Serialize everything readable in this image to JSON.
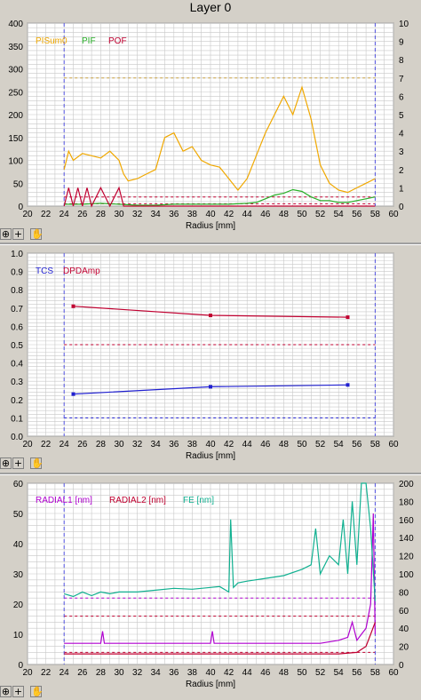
{
  "title": "Layer 0",
  "toolbar": {
    "zoom_icon": "zoom-icon",
    "cross_icon": "crosshair-icon",
    "hand_icon": "hand-pan-icon"
  },
  "colors": {
    "orange": "#f0a800",
    "green": "#28b028",
    "red": "#c00030",
    "blue": "#2020d0",
    "purple": "#b000d0",
    "teal": "#10b090",
    "plot_bg": "#ffffff",
    "grid": "#c8c8c8",
    "vline": "#5050e0"
  },
  "chart_data": [
    {
      "type": "line",
      "xlabel": "Radius [mm]",
      "xlim": [
        20,
        60
      ],
      "ylim": [
        0,
        400
      ],
      "y2lim": [
        0,
        10
      ],
      "xticks": [
        20,
        22,
        24,
        26,
        28,
        30,
        32,
        34,
        36,
        38,
        40,
        42,
        44,
        46,
        48,
        50,
        52,
        54,
        56,
        58,
        60
      ],
      "yticks": [
        0,
        50,
        100,
        150,
        200,
        250,
        300,
        350,
        400
      ],
      "y2ticks": [
        0,
        1,
        2,
        3,
        4,
        5,
        6,
        7,
        8,
        9,
        10
      ],
      "vlines": [
        24,
        58
      ],
      "series": [
        {
          "name": "PISum0",
          "color": "#f0a800",
          "axis": "y",
          "x": [
            24,
            24.5,
            25,
            26,
            27,
            28,
            29,
            30,
            30.5,
            31,
            32,
            33,
            34,
            35,
            36,
            37,
            38,
            39,
            40,
            41,
            42,
            43,
            44,
            45,
            46,
            47,
            48,
            49,
            50,
            51,
            52,
            53,
            54,
            55,
            56,
            57,
            58
          ],
          "values": [
            80,
            120,
            100,
            115,
            110,
            105,
            120,
            100,
            70,
            55,
            60,
            70,
            80,
            150,
            160,
            120,
            130,
            100,
            90,
            85,
            60,
            35,
            60,
            110,
            160,
            200,
            240,
            200,
            260,
            190,
            90,
            50,
            35,
            30,
            40,
            50,
            60
          ]
        },
        {
          "name": "PIF",
          "color": "#28b028",
          "axis": "y2",
          "x": [
            24,
            26,
            28,
            30,
            32,
            34,
            36,
            38,
            40,
            42,
            44,
            45,
            46,
            47,
            48,
            49,
            50,
            51,
            52,
            53,
            54,
            55,
            56,
            57,
            58
          ],
          "values": [
            0.1,
            0.1,
            0.15,
            0.1,
            0.05,
            0.05,
            0.1,
            0.1,
            0.1,
            0.1,
            0.15,
            0.2,
            0.4,
            0.6,
            0.7,
            0.9,
            0.8,
            0.5,
            0.3,
            0.3,
            0.2,
            0.2,
            0.3,
            0.4,
            0.5
          ]
        },
        {
          "name": "POF",
          "color": "#c00030",
          "axis": "y2",
          "x": [
            24,
            24.5,
            25,
            25.5,
            26,
            26.5,
            27,
            28,
            29,
            30,
            30.5,
            31,
            58
          ],
          "values": [
            0,
            1,
            0,
            1,
            0,
            1,
            0,
            1,
            0,
            1,
            0,
            0,
            0
          ]
        }
      ],
      "hlines": [
        {
          "value": 280,
          "color": "#c8a040"
        },
        {
          "value": 20,
          "color": "#c00030"
        },
        {
          "value": 5,
          "color": "#c00030"
        }
      ]
    },
    {
      "type": "line",
      "xlabel": "Radius [mm]",
      "xlim": [
        20,
        60
      ],
      "ylim": [
        0,
        1.0
      ],
      "xticks": [
        20,
        22,
        24,
        26,
        28,
        30,
        32,
        34,
        36,
        38,
        40,
        42,
        44,
        46,
        48,
        50,
        52,
        54,
        56,
        58,
        60
      ],
      "yticks": [
        0.0,
        0.1,
        0.2,
        0.3,
        0.4,
        0.5,
        0.6,
        0.7,
        0.8,
        0.9,
        1.0
      ],
      "vlines": [
        24,
        58
      ],
      "series": [
        {
          "name": "TCS",
          "color": "#2020d0",
          "x": [
            25,
            40,
            55
          ],
          "values": [
            0.23,
            0.27,
            0.28
          ]
        },
        {
          "name": "DPDAmp",
          "color": "#c00030",
          "x": [
            25,
            40,
            55
          ],
          "values": [
            0.71,
            0.66,
            0.65
          ]
        }
      ],
      "hlines": [
        {
          "value": 0.5,
          "color": "#c00030"
        },
        {
          "value": 0.1,
          "color": "#2020d0"
        }
      ]
    },
    {
      "type": "line",
      "xlabel": "Radius [mm]",
      "xlim": [
        20,
        60
      ],
      "ylim": [
        0,
        60
      ],
      "y2lim": [
        0,
        200
      ],
      "xticks": [
        20,
        22,
        24,
        26,
        28,
        30,
        32,
        34,
        36,
        38,
        40,
        42,
        44,
        46,
        48,
        50,
        52,
        54,
        56,
        58,
        60
      ],
      "yticks": [
        0,
        10,
        20,
        30,
        40,
        50,
        60
      ],
      "y2ticks": [
        0,
        20,
        40,
        60,
        80,
        100,
        120,
        140,
        160,
        180,
        200
      ],
      "vlines": [
        24,
        58
      ],
      "series": [
        {
          "name": "RADIAL1 [nm]",
          "color": "#b000d0",
          "axis": "y",
          "x": [
            24,
            26,
            28,
            28.2,
            28.4,
            30,
            32,
            34,
            36,
            38,
            40,
            40.2,
            40.4,
            42,
            44,
            46,
            48,
            50,
            52,
            54,
            55,
            55.5,
            56,
            56.5,
            57,
            57.5,
            57.8,
            58
          ],
          "values": [
            7,
            7,
            7,
            11,
            7,
            7,
            7,
            7,
            7,
            7,
            7,
            11,
            7,
            7,
            7,
            7,
            7,
            7,
            7,
            8,
            9,
            14,
            8,
            10,
            12,
            20,
            50,
            10
          ]
        },
        {
          "name": "RADIAL2 [nm]",
          "color": "#c00030",
          "axis": "y",
          "x": [
            24,
            26,
            28,
            30,
            32,
            34,
            36,
            38,
            40,
            42,
            44,
            46,
            48,
            50,
            52,
            54,
            56,
            57,
            57.5,
            58
          ],
          "values": [
            3.5,
            3.5,
            3.5,
            3.5,
            3.5,
            3.5,
            3.5,
            3.5,
            3.5,
            3.5,
            3.5,
            3.5,
            3.5,
            3.5,
            3.5,
            3.5,
            4,
            6,
            10,
            14
          ]
        },
        {
          "name": "FE [nm]",
          "color": "#10b090",
          "axis": "y2",
          "x": [
            24,
            25,
            26,
            27,
            28,
            29,
            30,
            32,
            34,
            36,
            38,
            40,
            41,
            42,
            42.2,
            42.5,
            43,
            44,
            46,
            48,
            50,
            51,
            51.5,
            52,
            53,
            54,
            54.5,
            55,
            55.5,
            56,
            56.5,
            57,
            57.5,
            58
          ],
          "values": [
            78,
            75,
            80,
            76,
            80,
            78,
            80,
            80,
            82,
            84,
            83,
            85,
            86,
            80,
            160,
            85,
            90,
            92,
            95,
            98,
            105,
            110,
            150,
            100,
            120,
            110,
            160,
            100,
            180,
            110,
            200,
            200,
            150,
            70
          ]
        }
      ],
      "hlines": [
        {
          "value": 22,
          "color": "#b000d0"
        },
        {
          "value": 16,
          "color": "#c00030"
        },
        {
          "value": 4,
          "color": "#c00030"
        }
      ]
    }
  ]
}
